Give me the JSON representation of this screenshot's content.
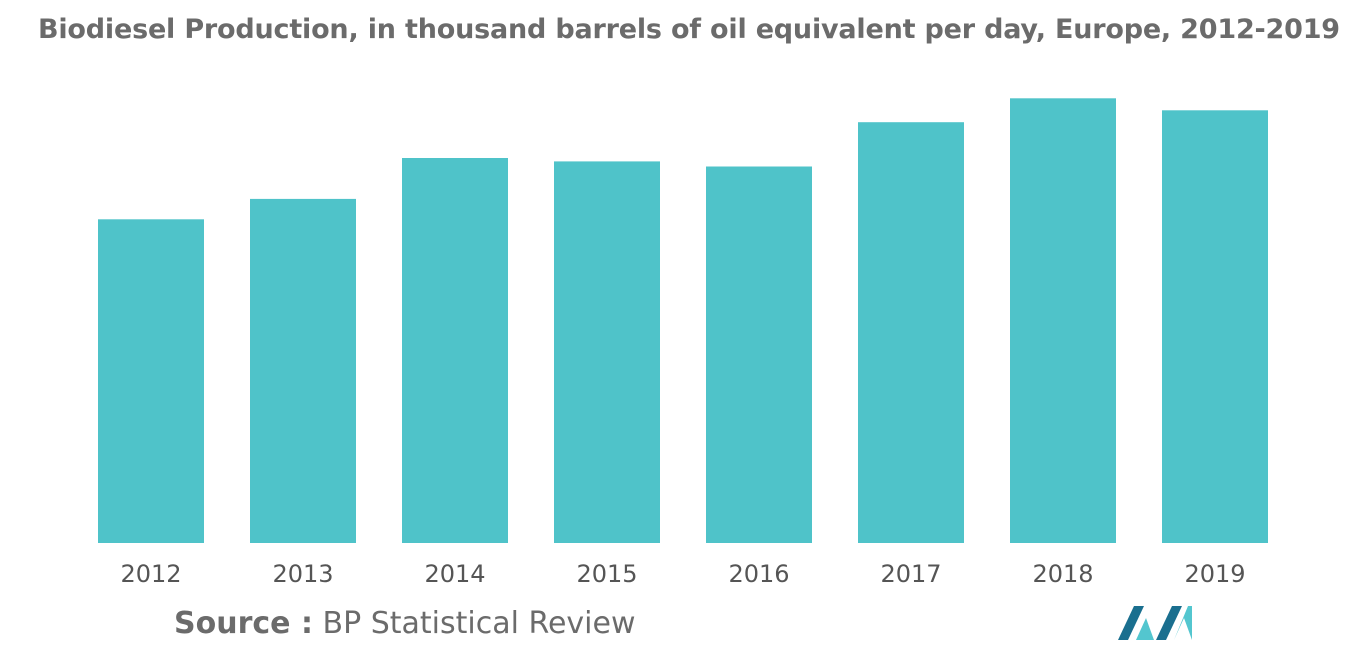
{
  "chart_data": {
    "type": "bar",
    "title": "Biodiesel Production, in thousand barrels of oil equivalent per day, Europe, 2012-2019",
    "xlabel": "",
    "ylabel": "",
    "categories": [
      "2012",
      "2013",
      "2014",
      "2015",
      "2016",
      "2017",
      "2018",
      "2019"
    ],
    "values": [
      190,
      202,
      226,
      224,
      221,
      247,
      261,
      254
    ],
    "ylim": [
      0,
      270
    ],
    "grid": false,
    "legend": "none",
    "bar_color": "#4fc3c9"
  },
  "source": {
    "label": "Source :",
    "text": "BP Statistical Review"
  },
  "logo": {
    "icon": "mordor-intelligence-logo-icon",
    "color_dark": "#1a6f8f",
    "color_light": "#53c6cf"
  }
}
